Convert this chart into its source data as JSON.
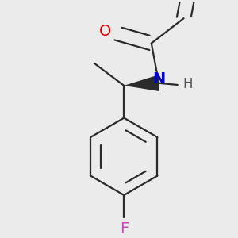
{
  "bg_color": "#ebebeb",
  "bond_color": "#2a2a2a",
  "atom_colors": {
    "O": "#dd0000",
    "N": "#0000cc",
    "F": "#cc44bb",
    "H": "#555555"
  },
  "font_size_atoms": 14,
  "font_size_h": 12,
  "line_width": 1.6,
  "dbo": 0.025
}
